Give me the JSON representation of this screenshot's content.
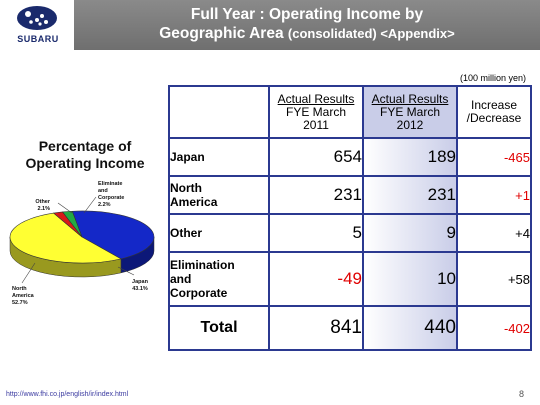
{
  "header": {
    "logo_text": "SUBARU",
    "title_line1": "Full Year : Operating Income by",
    "title_line2_main": "Geographic Area",
    "title_line2_sub": "(consolidated) <Appendix>"
  },
  "unit_note": "(100 million yen)",
  "pie": {
    "title_line1": "Percentage of",
    "title_line2": "Operating Income",
    "labels": {
      "japan": [
        "Japan",
        "43.1%"
      ],
      "north_america": [
        "North",
        "America",
        "52.7%"
      ],
      "other": [
        "Other",
        "2.1%"
      ],
      "elim": [
        "Eliminate",
        "and",
        "Corporate",
        "2.2%"
      ]
    }
  },
  "table": {
    "headers": {
      "col2011": [
        "Actual Results",
        "FYE March",
        "2011"
      ],
      "col2012": [
        "Actual Results",
        "FYE March",
        "2012"
      ],
      "change": [
        "Increase",
        "/Decrease"
      ]
    },
    "rows": [
      {
        "region": [
          "Japan"
        ],
        "fy2011": "654",
        "fy2012": "189",
        "change": "-465"
      },
      {
        "region": [
          "North",
          "America"
        ],
        "fy2011": "231",
        "fy2012": "231",
        "change": "+1"
      },
      {
        "region": [
          "Other"
        ],
        "fy2011": "5",
        "fy2012": "9",
        "change": "+4"
      },
      {
        "region": [
          "Elimination",
          "and",
          "Corporate"
        ],
        "fy2011": "-49",
        "fy2012": "10",
        "change": "+58"
      }
    ],
    "total": {
      "label": "Total",
      "fy2011": "841",
      "fy2012": "440",
      "change": "-402"
    }
  },
  "chart_data": {
    "type": "pie",
    "title": "Percentage of Operating Income",
    "categories": [
      "Japan",
      "North America",
      "Other",
      "Eliminate and Corporate"
    ],
    "values": [
      43.1,
      52.7,
      2.1,
      2.2
    ],
    "colors": [
      "#1428c8",
      "#ffff33",
      "#d81818",
      "#22aa44"
    ]
  },
  "footer": {
    "url": "http://www.fhi.co.jp/english/ir/index.html",
    "page": "8"
  },
  "colors": {
    "negative": "#e00000",
    "table_border": "#2b3990",
    "highlight_column": "#c9cde8"
  }
}
